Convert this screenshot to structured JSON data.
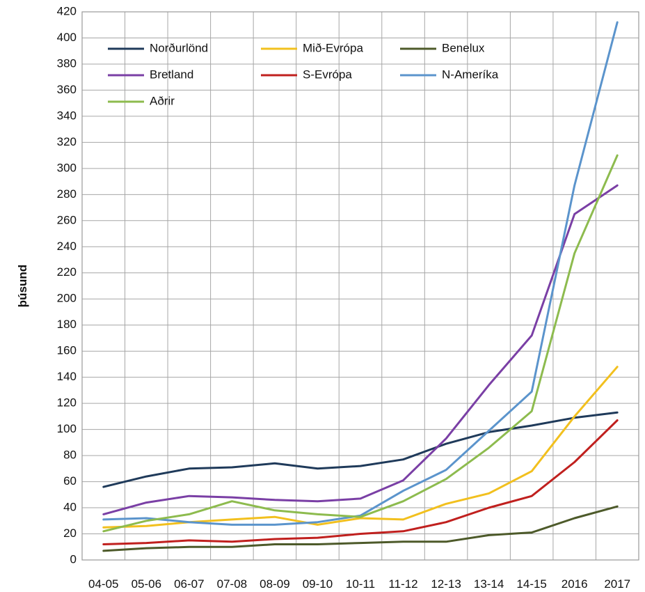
{
  "chart_data": {
    "type": "line",
    "ylabel": "þúsund",
    "xlabel": "",
    "title": "",
    "ylim": [
      0,
      420
    ],
    "ytick_step": 20,
    "grid": true,
    "legend_position": "top-left",
    "categories": [
      "04-05",
      "05-06",
      "06-07",
      "07-08",
      "08-09",
      "09-10",
      "10-11",
      "11-12",
      "12-13",
      "13-14",
      "14-15",
      "2016",
      "2017"
    ],
    "series": [
      {
        "name": "Norðurlönd",
        "color": "#1f3a5a",
        "values": [
          56,
          64,
          70,
          71,
          74,
          70,
          72,
          77,
          89,
          98,
          103,
          109,
          113
        ]
      },
      {
        "name": "Mið-Evrópa",
        "color": "#f2c01e",
        "values": [
          25,
          26,
          29,
          31,
          33,
          27,
          32,
          31,
          43,
          51,
          68,
          110,
          148
        ]
      },
      {
        "name": "Benelux",
        "color": "#4d5a2a",
        "values": [
          7,
          9,
          10,
          10,
          12,
          12,
          13,
          14,
          14,
          19,
          21,
          32,
          41
        ]
      },
      {
        "name": "Bretland",
        "color": "#7a3fa5",
        "values": [
          35,
          44,
          49,
          48,
          46,
          45,
          47,
          61,
          93,
          134,
          172,
          265,
          287
        ]
      },
      {
        "name": "S-Evrópa",
        "color": "#c0201e",
        "values": [
          12,
          13,
          15,
          14,
          16,
          17,
          20,
          22,
          29,
          40,
          49,
          75,
          107
        ]
      },
      {
        "name": "N-Ameríka",
        "color": "#5b94cc",
        "values": [
          31,
          32,
          29,
          27,
          27,
          29,
          34,
          53,
          69,
          99,
          129,
          287,
          412
        ]
      },
      {
        "name": "Aðrir",
        "color": "#8dbb4e",
        "values": [
          22,
          30,
          35,
          45,
          38,
          35,
          33,
          45,
          62,
          86,
          114,
          235,
          310
        ]
      }
    ]
  }
}
